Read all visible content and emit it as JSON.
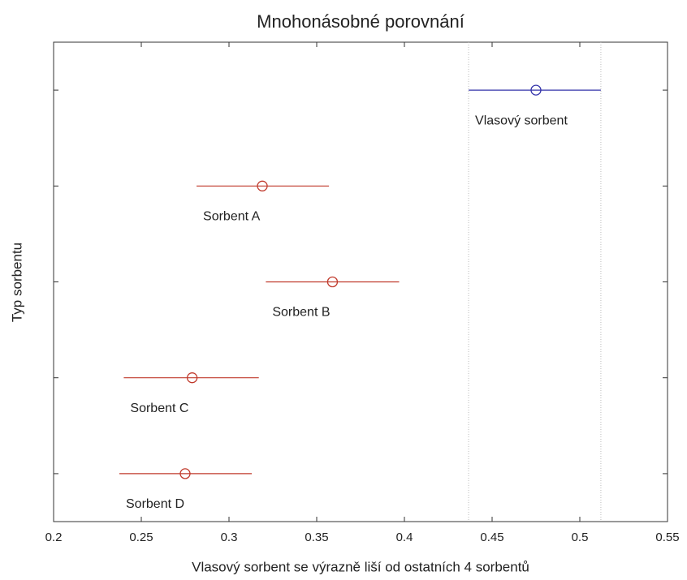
{
  "chart_data": {
    "type": "interval",
    "title": "Mnohonásobné porovnání",
    "x_label": "Vlasový sorbent se výrazně liší od ostatních 4 sorbentů",
    "y_label": "Typ sorbentu",
    "categories": [
      "Vlasový sorbent",
      "Sorbent A",
      "Sorbent B",
      "Sorbent C",
      "Sorbent D"
    ],
    "values": [
      0.475,
      0.319,
      0.359,
      0.279,
      0.275
    ],
    "lower": [
      0.4366,
      0.2815,
      0.321,
      0.24,
      0.2375
    ],
    "upper": [
      0.512,
      0.357,
      0.397,
      0.317,
      0.313
    ],
    "colors": [
      "#3333aa",
      "#c0392b",
      "#c0392b",
      "#c0392b",
      "#c0392b"
    ],
    "highlight": 0,
    "xlim": [
      0.2,
      0.55
    ],
    "xticks": [
      0.2,
      0.25,
      0.3,
      0.35,
      0.4,
      0.45,
      0.5,
      0.55
    ],
    "ylim": [
      0.5,
      5.5
    ],
    "yticks": [
      1,
      2,
      3,
      4,
      5
    ],
    "y_reversed": true
  }
}
